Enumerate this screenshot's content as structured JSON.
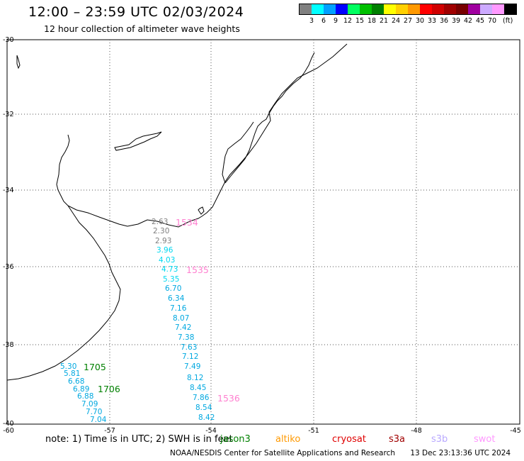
{
  "header": {
    "title": "12:00 – 23:59 UTC 02/03/2024",
    "subtitle": "12 hour collection of altimeter wave heights"
  },
  "legend": {
    "unit": "(ft)",
    "labels": [
      "3",
      "6",
      "9",
      "12",
      "15",
      "18",
      "21",
      "24",
      "27",
      "30",
      "33",
      "36",
      "39",
      "42",
      "45",
      "70"
    ],
    "colors": [
      "#808080",
      "#00ffff",
      "#00a0ff",
      "#0000ff",
      "#00ff60",
      "#00c000",
      "#008000",
      "#ffff00",
      "#ffd000",
      "#ff9900",
      "#ff0000",
      "#d00000",
      "#a00000",
      "#780000",
      "#a000a0",
      "#ccaaff",
      "#ff99ff",
      "#000000"
    ]
  },
  "axes": {
    "lat_labels": [
      "-30",
      "-32",
      "-34",
      "-36",
      "-38",
      "-40"
    ],
    "lon_labels": [
      "-60",
      "-57",
      "-54",
      "-51",
      "-48",
      "-45"
    ]
  },
  "tracks": [
    {
      "color": "#808080",
      "values": [
        "2.63",
        "2.30",
        "2.93"
      ]
    },
    {
      "color": "#00d8f0",
      "values": [
        "3.96",
        "4.03",
        "4.73",
        "5.35"
      ]
    },
    {
      "color": "#00a8e0",
      "values": [
        "6.70",
        "6.34",
        "7.16",
        "8.07",
        "7.42",
        "7.38",
        "7.63",
        "7.12",
        "7.49",
        "8.12",
        "8.45",
        "7.86",
        "8.54",
        "8.42"
      ]
    },
    {
      "color": "#00a8e0",
      "values": [
        "5.30",
        "5.81",
        "6.68",
        "6.89",
        "6.88",
        "7.09",
        "7.70",
        "7.04"
      ]
    }
  ],
  "pass_times": [
    {
      "label": "1534",
      "color": "#ff80d0"
    },
    {
      "label": "1535",
      "color": "#ff80d0"
    },
    {
      "label": "1536",
      "color": "#ff80d0"
    },
    {
      "label": "1705",
      "color": "#008000"
    },
    {
      "label": "1706",
      "color": "#008000"
    }
  ],
  "note": "note: 1) Time is in UTC; 2) SWH is in feet",
  "satellites": [
    {
      "name": "jason3",
      "color": "#008000"
    },
    {
      "name": "altiko",
      "color": "#ff9900"
    },
    {
      "name": "cryosat",
      "color": "#e00000"
    },
    {
      "name": "s3a",
      "color": "#a00000"
    },
    {
      "name": "s3b",
      "color": "#b8a8ff"
    },
    {
      "name": "swot",
      "color": "#ff99ff"
    }
  ],
  "footer": {
    "credit": "NOAA/NESDIS Center for Satellite Applications and Research",
    "timestamp": "13 Dec 23:13:36 UTC 2024"
  }
}
